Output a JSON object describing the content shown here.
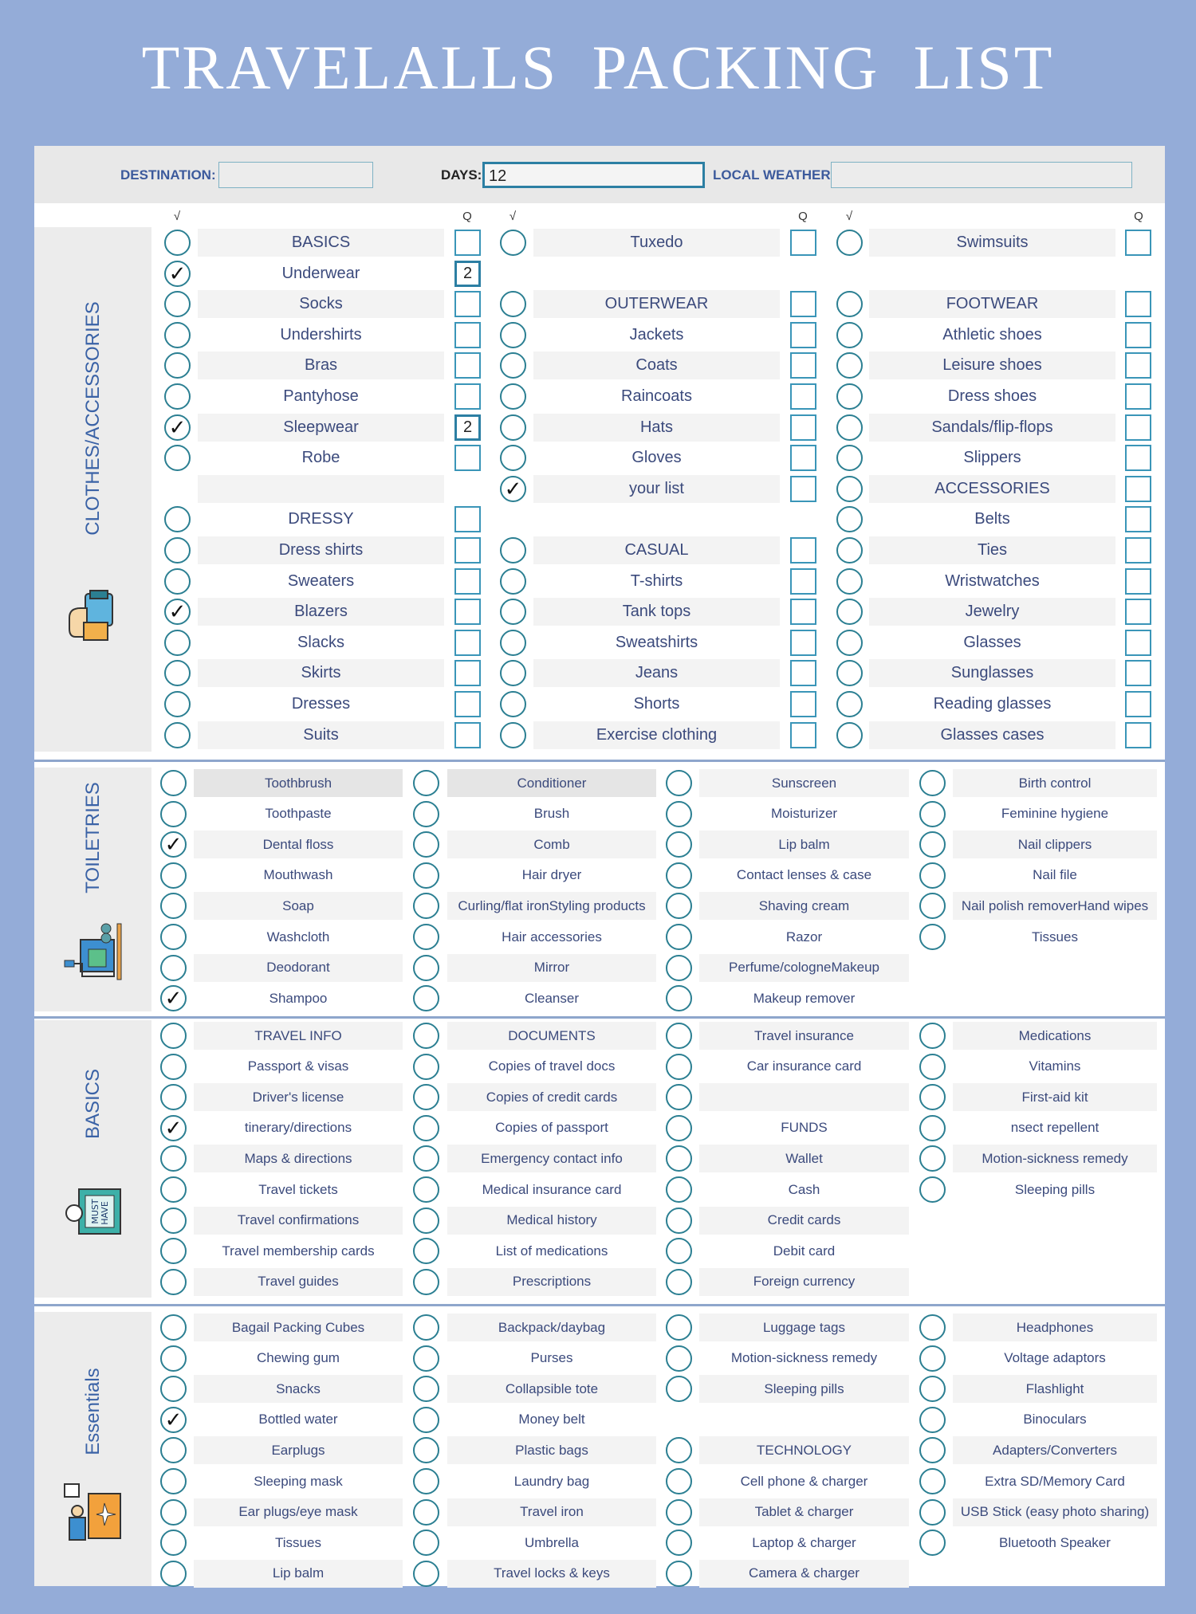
{
  "title": "TRAVELALLS  PACKING LIST",
  "header": {
    "destination_label": "DESTINATION:",
    "destination_value": "",
    "days_label": "DAYS:",
    "days_value": "12",
    "weather_label": "LOCAL WEATHER:",
    "weather_value": ""
  },
  "column_headers": {
    "check": "√",
    "qty": "Q"
  },
  "colors": {
    "background": "#94acd8",
    "circle": "#2b7f92",
    "text": "#3b4a7c",
    "side_label": "#3a62a6"
  },
  "sections": [
    {
      "title": "CLOTHES/ACCESSORIES",
      "icon": "clothes-icon",
      "layout": "3col",
      "columns": [
        [
          {
            "label": "BASICS"
          },
          {
            "label": "Underwear",
            "checked": true,
            "qty": "2"
          },
          {
            "label": "Socks"
          },
          {
            "label": "Undershirts"
          },
          {
            "label": "Bras"
          },
          {
            "label": "Pantyhose"
          },
          {
            "label": "Sleepwear",
            "checked": true,
            "qty": "2"
          },
          {
            "label": "Robe"
          },
          {
            "label": "",
            "blank": true
          },
          {
            "label": "DRESSY"
          },
          {
            "label": "Dress shirts"
          },
          {
            "label": "Sweaters"
          },
          {
            "label": "Blazers",
            "checked": true
          },
          {
            "label": "Slacks"
          },
          {
            "label": "Skirts"
          },
          {
            "label": "Dresses"
          },
          {
            "label": "Suits"
          }
        ],
        [
          {
            "label": "Tuxedo"
          },
          null,
          {
            "label": "OUTERWEAR"
          },
          {
            "label": "Jackets"
          },
          {
            "label": "Coats"
          },
          {
            "label": "Raincoats"
          },
          {
            "label": "Hats"
          },
          {
            "label": "Gloves"
          },
          {
            "label": "your list",
            "checked": true
          },
          null,
          {
            "label": "CASUAL"
          },
          {
            "label": "T-shirts"
          },
          {
            "label": "Tank tops"
          },
          {
            "label": "Sweatshirts"
          },
          {
            "label": "Jeans"
          },
          {
            "label": "Shorts"
          },
          {
            "label": "Exercise clothing"
          }
        ],
        [
          {
            "label": "Swimsuits"
          },
          null,
          {
            "label": "FOOTWEAR"
          },
          {
            "label": "Athletic shoes"
          },
          {
            "label": "Leisure shoes"
          },
          {
            "label": "Dress shoes"
          },
          {
            "label": "Sandals/flip-flops"
          },
          {
            "label": "Slippers"
          },
          {
            "label": "ACCESSORIES"
          },
          {
            "label": "Belts"
          },
          {
            "label": "Ties"
          },
          {
            "label": "Wristwatches"
          },
          {
            "label": "Jewelry"
          },
          {
            "label": "Glasses"
          },
          {
            "label": "Sunglasses"
          },
          {
            "label": "Reading glasses"
          },
          {
            "label": "Glasses cases"
          }
        ]
      ]
    },
    {
      "title": "TOILETRIES",
      "icon": "toiletries-icon",
      "layout": "4col",
      "columns": [
        [
          {
            "label": "Toothbrush"
          },
          {
            "label": "Toothpaste"
          },
          {
            "label": "Dental floss",
            "checked": true
          },
          {
            "label": "Mouthwash"
          },
          {
            "label": "Soap"
          },
          {
            "label": "Washcloth"
          },
          {
            "label": "Deodorant"
          },
          {
            "label": "Shampoo",
            "checked": true
          }
        ],
        [
          {
            "label": "Conditioner"
          },
          {
            "label": "Brush"
          },
          {
            "label": "Comb"
          },
          {
            "label": "Hair dryer"
          },
          {
            "label": "Curling/flat ironStyling products"
          },
          {
            "label": "Hair accessories"
          },
          {
            "label": "Mirror"
          },
          {
            "label": "Cleanser"
          }
        ],
        [
          {
            "label": "Sunscreen"
          },
          {
            "label": "Moisturizer"
          },
          {
            "label": "Lip balm"
          },
          {
            "label": "Contact lenses & case"
          },
          {
            "label": "Shaving cream"
          },
          {
            "label": "Razor"
          },
          {
            "label": "Perfume/cologneMakeup"
          },
          {
            "label": "Makeup remover"
          }
        ],
        [
          {
            "label": "Birth control"
          },
          {
            "label": "Feminine hygiene"
          },
          {
            "label": "Nail clippers"
          },
          {
            "label": "Nail file"
          },
          {
            "label": "Nail polish removerHand wipes"
          },
          {
            "label": "Tissues"
          },
          null,
          null
        ]
      ]
    },
    {
      "title": "BASICS",
      "icon": "must-have-icon",
      "layout": "4col",
      "columns": [
        [
          {
            "label": "TRAVEL INFO"
          },
          {
            "label": "Passport & visas"
          },
          {
            "label": "Driver's license"
          },
          {
            "label": "tinerary/directions",
            "checked": true
          },
          {
            "label": "Maps & directions"
          },
          {
            "label": "Travel tickets"
          },
          {
            "label": "Travel confirmations"
          },
          {
            "label": "Travel membership cards"
          },
          {
            "label": "Travel guides"
          }
        ],
        [
          {
            "label": "DOCUMENTS"
          },
          {
            "label": "Copies of travel docs"
          },
          {
            "label": "Copies of credit cards"
          },
          {
            "label": "Copies of passport"
          },
          {
            "label": "Emergency contact info"
          },
          {
            "label": "Medical insurance card"
          },
          {
            "label": "Medical history"
          },
          {
            "label": "List of medications"
          },
          {
            "label": "Prescriptions"
          }
        ],
        [
          {
            "label": "Travel insurance"
          },
          {
            "label": "Car insurance card"
          },
          {
            "label": ""
          },
          {
            "label": "FUNDS"
          },
          {
            "label": "Wallet"
          },
          {
            "label": "Cash"
          },
          {
            "label": "Credit cards"
          },
          {
            "label": "Debit card"
          },
          {
            "label": "Foreign currency"
          }
        ],
        [
          {
            "label": "Medications"
          },
          {
            "label": "Vitamins"
          },
          {
            "label": "First-aid kit"
          },
          {
            "label": "nsect repellent"
          },
          {
            "label": "Motion-sickness remedy"
          },
          {
            "label": "Sleeping pills"
          },
          null,
          null,
          null
        ]
      ]
    },
    {
      "title": "Essentials",
      "icon": "luggage-icon",
      "layout": "4col",
      "columns": [
        [
          {
            "label": "Bagail Packing Cubes"
          },
          {
            "label": "Chewing gum"
          },
          {
            "label": "Snacks"
          },
          {
            "label": "Bottled water",
            "checked": true
          },
          {
            "label": "Earplugs"
          },
          {
            "label": "Sleeping mask"
          },
          {
            "label": "Ear plugs/eye mask"
          },
          {
            "label": "Tissues"
          },
          {
            "label": "Lip balm"
          }
        ],
        [
          {
            "label": "Backpack/daybag"
          },
          {
            "label": "Purses"
          },
          {
            "label": "Collapsible tote"
          },
          {
            "label": "Money belt"
          },
          {
            "label": "Plastic bags"
          },
          {
            "label": "Laundry bag"
          },
          {
            "label": "Travel iron"
          },
          {
            "label": "Umbrella"
          },
          {
            "label": "Travel locks & keys"
          }
        ],
        [
          {
            "label": "Luggage tags"
          },
          {
            "label": "Motion-sickness remedy"
          },
          {
            "label": "Sleeping pills"
          },
          null,
          {
            "label": "TECHNOLOGY"
          },
          {
            "label": "Cell phone & charger"
          },
          {
            "label": "Tablet & charger"
          },
          {
            "label": "Laptop & charger"
          },
          {
            "label": "Camera & charger"
          }
        ],
        [
          {
            "label": "Headphones"
          },
          {
            "label": "Voltage adaptors"
          },
          {
            "label": "Flashlight"
          },
          {
            "label": "Binoculars"
          },
          {
            "label": "Adapters/Converters"
          },
          {
            "label": "Extra SD/Memory Card"
          },
          {
            "label": "USB Stick (easy photo sharing)"
          },
          {
            "label": "Bluetooth Speaker"
          },
          null
        ]
      ]
    }
  ]
}
